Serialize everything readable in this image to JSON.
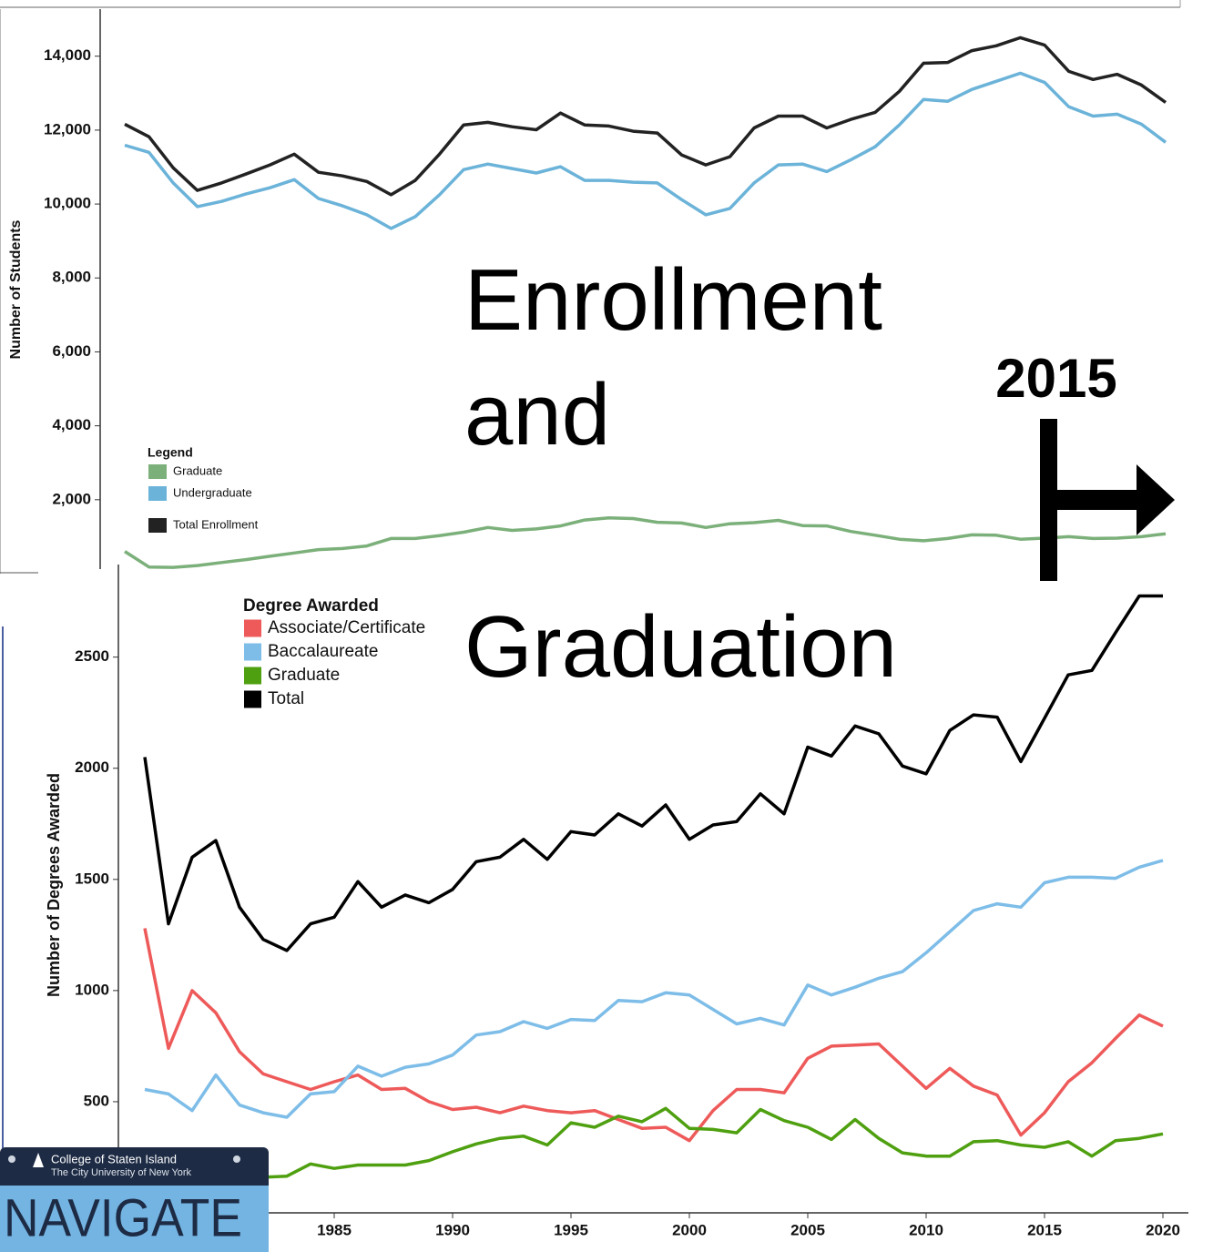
{
  "chart_data": [
    {
      "type": "line",
      "y_label": "Number of Students",
      "legend_title": "Legend",
      "categories": [
        null,
        null,
        null,
        null,
        null,
        null,
        null,
        null,
        null,
        null,
        null,
        null,
        null,
        null,
        null,
        null,
        null,
        null,
        null,
        null,
        null,
        null,
        null,
        null,
        null,
        null,
        null,
        null,
        null,
        null,
        null,
        null,
        null,
        null,
        null,
        null,
        null,
        null,
        null,
        null,
        null,
        null,
        null,
        null
      ],
      "ylim": [
        0,
        15200
      ],
      "yticks": [
        {
          "value": 2000,
          "label": "2,000"
        },
        {
          "value": 4000,
          "label": "4,000"
        },
        {
          "value": 6000,
          "label": "6,000"
        },
        {
          "value": 8000,
          "label": "8,000"
        },
        {
          "value": 10000,
          "label": "10,000"
        },
        {
          "value": 12000,
          "label": "12,000"
        },
        {
          "value": 14000,
          "label": "14,000"
        }
      ],
      "series": [
        {
          "name": "Graduate",
          "color": "#7cb07a",
          "values": [
            600,
            180,
            170,
            220,
            300,
            380,
            470,
            560,
            650,
            680,
            750,
            950,
            950,
            1030,
            1120,
            1250,
            1170,
            1210,
            1290,
            1450,
            1510,
            1490,
            1390,
            1370,
            1250,
            1350,
            1380,
            1440,
            1300,
            1290,
            1140,
            1040,
            930,
            890,
            950,
            1050,
            1040,
            930,
            960,
            1000,
            950,
            960,
            1000,
            1080
          ]
        },
        {
          "name": "Undergraduate",
          "color": "#6bb3d9",
          "values": [
            11590,
            11400,
            10570,
            9930,
            10070,
            10270,
            10440,
            10660,
            10150,
            9950,
            9710,
            9340,
            9660,
            10250,
            10930,
            11080,
            10960,
            10840,
            11010,
            10640,
            10640,
            10590,
            10570,
            10120,
            9710,
            9880,
            10570,
            11060,
            11080,
            10880,
            11200,
            11550,
            12140,
            12830,
            12780,
            13100,
            13320,
            13540,
            13290,
            12630,
            12380,
            12430,
            12160,
            11670
          ]
        },
        {
          "name": "Total Enrollment",
          "color": "#222222",
          "values": [
            12160,
            11820,
            10980,
            10370,
            10570,
            10810,
            11060,
            11350,
            10860,
            10760,
            10610,
            10250,
            10640,
            11350,
            12140,
            12210,
            12090,
            12010,
            12460,
            12140,
            12110,
            11970,
            11920,
            11330,
            11060,
            11280,
            12060,
            12380,
            12380,
            12060,
            12290,
            12480,
            13050,
            13810,
            13830,
            14150,
            14280,
            14500,
            14300,
            13590,
            13370,
            13510,
            13220,
            12750
          ]
        }
      ]
    },
    {
      "type": "line",
      "y_label": "Number of Degrees Awarded",
      "legend_title": "Degree Awarded",
      "x": [
        1977,
        1978,
        1979,
        1980,
        1981,
        1982,
        1983,
        1984,
        1985,
        1986,
        1987,
        1988,
        1989,
        1990,
        1991,
        1992,
        1993,
        1994,
        1995,
        1996,
        1997,
        1998,
        1999,
        2000,
        2001,
        2002,
        2003,
        2004,
        2005,
        2006,
        2007,
        2008,
        2009,
        2010,
        2011,
        2012,
        2013,
        2014,
        2015,
        2016,
        2017,
        2018,
        2019,
        2020
      ],
      "xlim": [
        1976,
        2021
      ],
      "xticks": [
        1985,
        1990,
        1995,
        2000,
        2005,
        2010,
        2015,
        2020
      ],
      "ylim": [
        0,
        2900
      ],
      "yticks": [
        500,
        1000,
        1500,
        2000,
        2500
      ],
      "series": [
        {
          "name": "Associate/Certificate",
          "color": "#ee5a5a",
          "values": [
            1280,
            740,
            1000,
            900,
            725,
            625,
            590,
            555,
            590,
            620,
            555,
            560,
            500,
            465,
            475,
            450,
            480,
            460,
            450,
            460,
            420,
            380,
            385,
            325,
            460,
            555,
            555,
            540,
            695,
            750,
            755,
            760,
            660,
            560,
            650,
            570,
            530,
            350,
            450,
            590,
            675,
            785,
            890,
            840
          ]
        },
        {
          "name": "Baccalaureate",
          "color": "#7dbde8",
          "values": [
            555,
            535,
            460,
            620,
            485,
            450,
            430,
            535,
            545,
            660,
            615,
            655,
            670,
            710,
            800,
            815,
            860,
            830,
            870,
            865,
            955,
            950,
            990,
            980,
            915,
            850,
            875,
            845,
            1025,
            980,
            1015,
            1055,
            1085,
            1170,
            1265,
            1360,
            1390,
            1375,
            1485,
            1510,
            1510,
            1505,
            1555,
            1585
          ]
        },
        {
          "name": "Graduate",
          "color": "#4fa010",
          "values": [
            200,
            150,
            140,
            160,
            170,
            160,
            165,
            220,
            200,
            215,
            215,
            215,
            235,
            275,
            310,
            335,
            345,
            305,
            405,
            385,
            435,
            410,
            470,
            380,
            375,
            360,
            465,
            415,
            385,
            330,
            420,
            335,
            270,
            255,
            255,
            320,
            325,
            305,
            295,
            320,
            255,
            325,
            335,
            355
          ]
        },
        {
          "name": "Total",
          "color": "#000000",
          "values": [
            2050,
            1300,
            1600,
            1675,
            1375,
            1230,
            1180,
            1300,
            1330,
            1490,
            1375,
            1430,
            1395,
            1455,
            1580,
            1600,
            1680,
            1590,
            1715,
            1700,
            1795,
            1740,
            1835,
            1680,
            1745,
            1760,
            1885,
            1795,
            2095,
            2055,
            2190,
            2155,
            2010,
            1975,
            2170,
            2240,
            2230,
            2030,
            2225,
            2420,
            2440,
            2610,
            2775,
            2775
          ]
        }
      ]
    }
  ],
  "overlay": {
    "lines": [
      "Enrollment",
      "and",
      "Graduation"
    ],
    "marker": "2015"
  },
  "logo": {
    "line1": "College of Staten Island",
    "line2": "The City University of New York",
    "name": "NAVIGATE"
  }
}
